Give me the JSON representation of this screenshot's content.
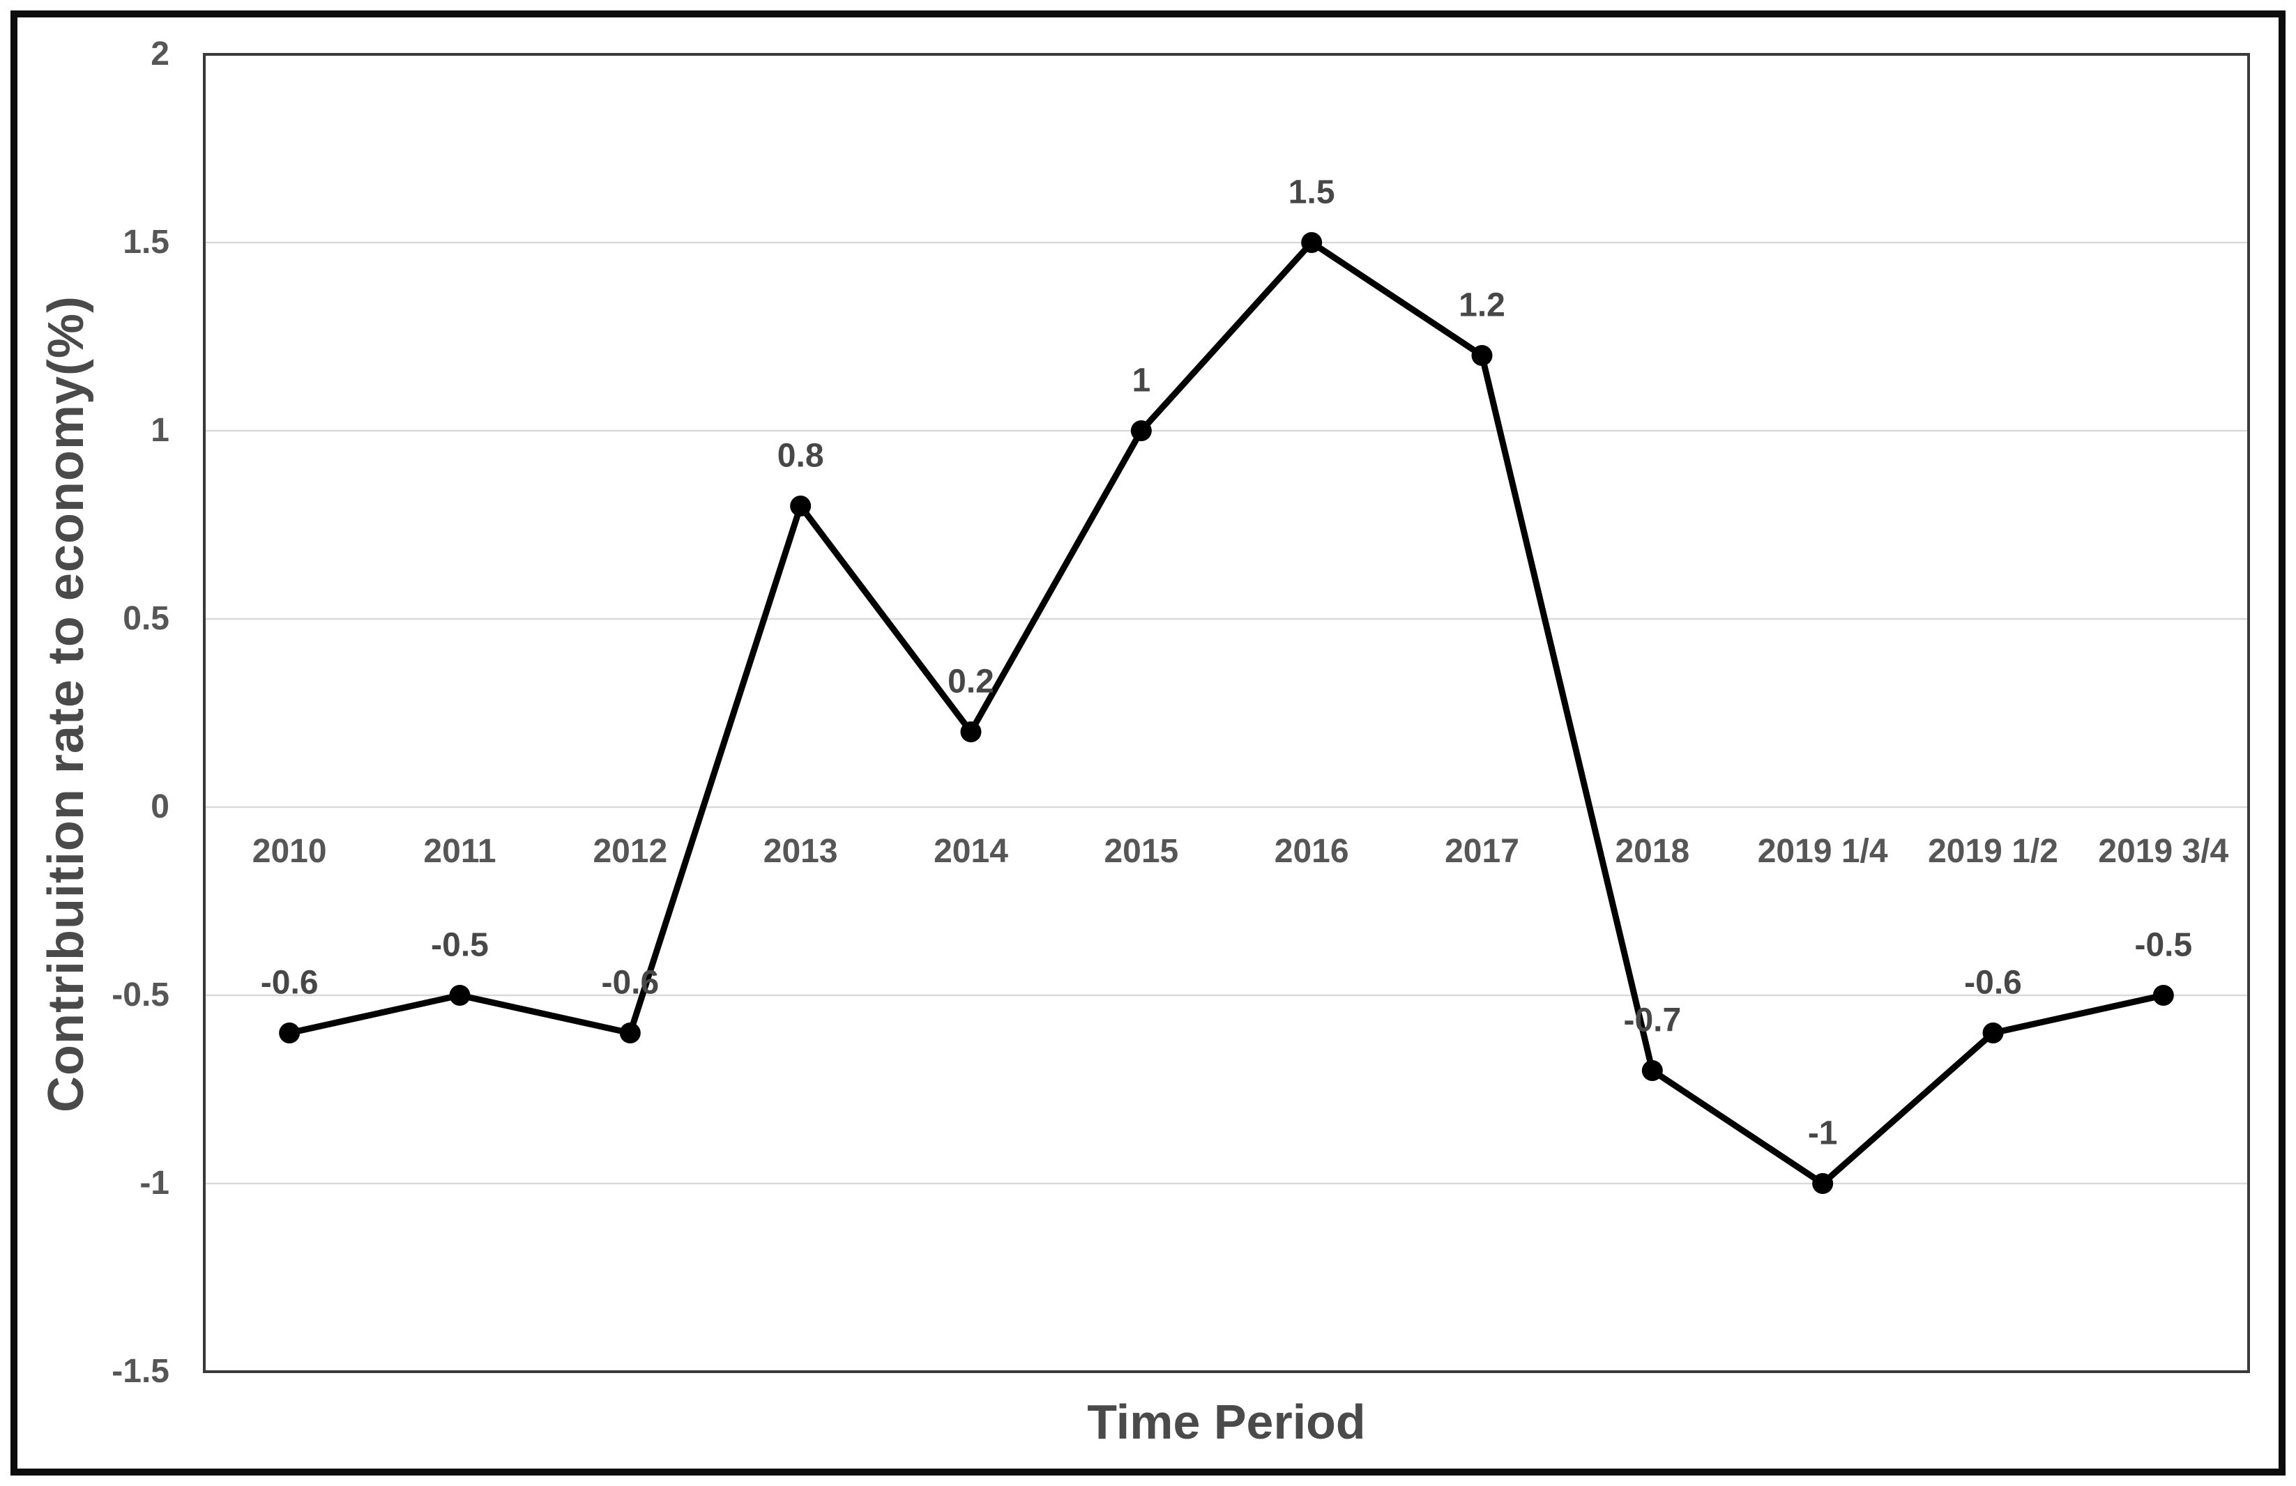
{
  "chart_data": {
    "type": "line",
    "title": "",
    "xlabel": "Time Period",
    "ylabel": "Contribuition rate to economy(%)",
    "categories": [
      "2010",
      "2011",
      "2012",
      "2013",
      "2014",
      "2015",
      "2016",
      "2017",
      "2018",
      "2019 1/4",
      "2019 1/2",
      "2019 3/4"
    ],
    "values": [
      -0.6,
      -0.5,
      -0.6,
      0.8,
      0.2,
      1,
      1.5,
      1.2,
      -0.7,
      -1,
      -0.6,
      -0.5
    ],
    "data_labels": [
      "-0.6",
      "-0.5",
      "-0.6",
      "0.8",
      "0.2",
      "1",
      "1.5",
      "1.2",
      "-0.7",
      "-1",
      "-0.6",
      "-0.5"
    ],
    "y_ticks": [
      2,
      1.5,
      1,
      0.5,
      0,
      -0.5,
      -1,
      -1.5
    ],
    "y_tick_labels": [
      "2",
      "1.5",
      "1",
      "0.5",
      "0",
      "-0.5",
      "-1",
      "-1.5"
    ],
    "ylim": [
      -1.5,
      2
    ],
    "grid": true,
    "legend": false,
    "colors": {
      "line": "#000000",
      "marker": "#000000",
      "grid": "#d9d9d9",
      "plot_border": "#3a3a3a",
      "outer_frame": "#0d0d0d",
      "tick_text": "#565656",
      "data_label_text": "#474747",
      "axis_title_text": "#4a4a4a",
      "background": "#ffffff"
    }
  }
}
